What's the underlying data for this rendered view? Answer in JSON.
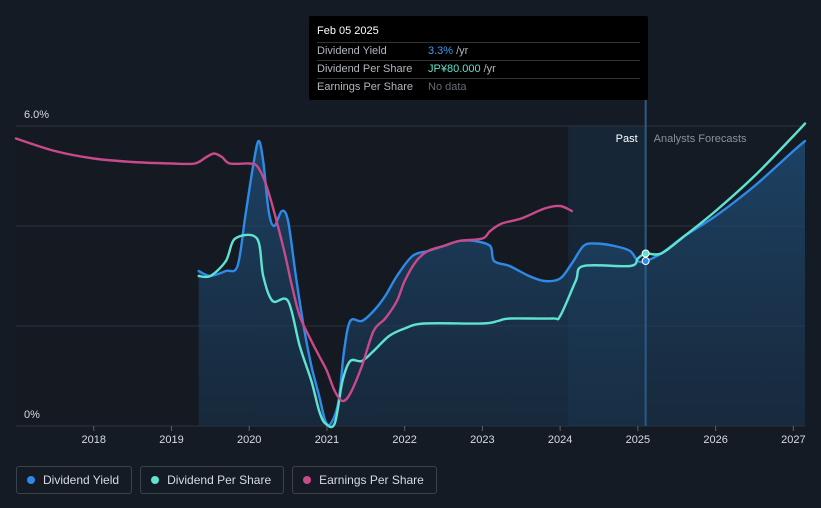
{
  "tooltip": {
    "date": "Feb 05 2025",
    "rows": [
      {
        "key": "Dividend Yield",
        "value": "3.3%",
        "unit": "/yr"
      },
      {
        "key": "Dividend Per Share",
        "value": "JP¥80.000",
        "unit": "/yr"
      },
      {
        "key": "Earnings Per Share",
        "value": "No data",
        "unit": ""
      }
    ]
  },
  "labels": {
    "past": "Past",
    "forecast": "Analysts Forecasts"
  },
  "legend": [
    {
      "label": "Dividend Yield",
      "color": "#2e8ae6"
    },
    {
      "label": "Dividend Per Share",
      "color": "#5fe3d0"
    },
    {
      "label": "Earnings Per Share",
      "color": "#c84a8a"
    }
  ],
  "chart_data": {
    "type": "line",
    "x_range": [
      2017.0,
      2027.15
    ],
    "y_range": [
      0,
      6.0
    ],
    "y_tick_labels": [
      {
        "value": 6.0,
        "label": "6.0%"
      },
      {
        "value": 0,
        "label": "0%"
      }
    ],
    "x_ticks": [
      2018,
      2019,
      2020,
      2021,
      2022,
      2023,
      2024,
      2025,
      2026,
      2027
    ],
    "grid": true,
    "past_region": [
      2024.1,
      2025.1
    ],
    "hover_x": 2025.1,
    "series": [
      {
        "name": "Dividend Yield",
        "color": "#2e8ae6",
        "fill": true,
        "points": [
          [
            2019.35,
            3.1
          ],
          [
            2019.5,
            3.0
          ],
          [
            2019.7,
            3.1
          ],
          [
            2019.85,
            3.2
          ],
          [
            2019.95,
            4.2
          ],
          [
            2020.05,
            5.2
          ],
          [
            2020.12,
            5.7
          ],
          [
            2020.18,
            5.3
          ],
          [
            2020.25,
            4.3
          ],
          [
            2020.32,
            4.0
          ],
          [
            2020.42,
            4.3
          ],
          [
            2020.5,
            4.1
          ],
          [
            2020.6,
            3.0
          ],
          [
            2020.7,
            2.0
          ],
          [
            2020.8,
            1.2
          ],
          [
            2020.9,
            0.6
          ],
          [
            2020.98,
            0.1
          ],
          [
            2021.05,
            0.05
          ],
          [
            2021.15,
            0.5
          ],
          [
            2021.22,
            1.5
          ],
          [
            2021.3,
            2.1
          ],
          [
            2021.45,
            2.1
          ],
          [
            2021.6,
            2.3
          ],
          [
            2021.75,
            2.6
          ],
          [
            2021.9,
            3.0
          ],
          [
            2022.1,
            3.4
          ],
          [
            2022.3,
            3.5
          ],
          [
            2022.5,
            3.6
          ],
          [
            2022.7,
            3.7
          ],
          [
            2022.9,
            3.7
          ],
          [
            2023.1,
            3.6
          ],
          [
            2023.15,
            3.3
          ],
          [
            2023.35,
            3.2
          ],
          [
            2023.6,
            3.0
          ],
          [
            2023.8,
            2.9
          ],
          [
            2024.0,
            2.95
          ],
          [
            2024.15,
            3.25
          ],
          [
            2024.3,
            3.6
          ],
          [
            2024.45,
            3.65
          ],
          [
            2024.7,
            3.6
          ],
          [
            2024.9,
            3.5
          ],
          [
            2025.0,
            3.3
          ],
          [
            2025.1,
            3.3
          ],
          [
            2025.3,
            3.45
          ],
          [
            2025.6,
            3.8
          ],
          [
            2026.0,
            4.2
          ],
          [
            2026.5,
            4.8
          ],
          [
            2027.0,
            5.5
          ],
          [
            2027.15,
            5.7
          ]
        ]
      },
      {
        "name": "Dividend Per Share",
        "color": "#5fe3d0",
        "fill": false,
        "points": [
          [
            2019.35,
            3.0
          ],
          [
            2019.5,
            3.0
          ],
          [
            2019.7,
            3.3
          ],
          [
            2019.82,
            3.75
          ],
          [
            2020.1,
            3.75
          ],
          [
            2020.18,
            3.0
          ],
          [
            2020.3,
            2.5
          ],
          [
            2020.5,
            2.5
          ],
          [
            2020.65,
            1.6
          ],
          [
            2020.8,
            0.9
          ],
          [
            2020.9,
            0.3
          ],
          [
            2020.98,
            0.05
          ],
          [
            2021.1,
            0.05
          ],
          [
            2021.2,
            0.9
          ],
          [
            2021.3,
            1.3
          ],
          [
            2021.45,
            1.3
          ],
          [
            2021.6,
            1.5
          ],
          [
            2021.8,
            1.8
          ],
          [
            2022.0,
            1.95
          ],
          [
            2022.25,
            2.05
          ],
          [
            2023.0,
            2.05
          ],
          [
            2023.2,
            2.1
          ],
          [
            2023.35,
            2.15
          ],
          [
            2023.9,
            2.15
          ],
          [
            2024.0,
            2.2
          ],
          [
            2024.2,
            2.9
          ],
          [
            2024.3,
            3.2
          ],
          [
            2024.9,
            3.2
          ],
          [
            2025.0,
            3.35
          ],
          [
            2025.1,
            3.45
          ],
          [
            2025.3,
            3.45
          ],
          [
            2025.6,
            3.8
          ],
          [
            2026.0,
            4.3
          ],
          [
            2026.5,
            5.0
          ],
          [
            2027.0,
            5.8
          ],
          [
            2027.15,
            6.05
          ]
        ]
      },
      {
        "name": "Earnings Per Share",
        "color": "#c84a8a",
        "fill": false,
        "points": [
          [
            2017.0,
            5.75
          ],
          [
            2017.5,
            5.5
          ],
          [
            2018.0,
            5.35
          ],
          [
            2018.5,
            5.28
          ],
          [
            2019.0,
            5.25
          ],
          [
            2019.3,
            5.25
          ],
          [
            2019.45,
            5.38
          ],
          [
            2019.55,
            5.45
          ],
          [
            2019.65,
            5.38
          ],
          [
            2019.75,
            5.25
          ],
          [
            2020.0,
            5.25
          ],
          [
            2020.1,
            5.2
          ],
          [
            2020.2,
            4.9
          ],
          [
            2020.3,
            4.4
          ],
          [
            2020.45,
            3.5
          ],
          [
            2020.55,
            2.8
          ],
          [
            2020.65,
            2.2
          ],
          [
            2020.8,
            1.7
          ],
          [
            2020.9,
            1.4
          ],
          [
            2021.0,
            1.1
          ],
          [
            2021.1,
            0.7
          ],
          [
            2021.2,
            0.5
          ],
          [
            2021.3,
            0.65
          ],
          [
            2021.45,
            1.2
          ],
          [
            2021.6,
            1.9
          ],
          [
            2021.75,
            2.15
          ],
          [
            2021.9,
            2.5
          ],
          [
            2022.0,
            2.9
          ],
          [
            2022.15,
            3.3
          ],
          [
            2022.3,
            3.5
          ],
          [
            2022.5,
            3.6
          ],
          [
            2022.7,
            3.7
          ],
          [
            2023.0,
            3.75
          ],
          [
            2023.1,
            3.9
          ],
          [
            2023.25,
            4.05
          ],
          [
            2023.5,
            4.15
          ],
          [
            2023.8,
            4.35
          ],
          [
            2024.0,
            4.4
          ],
          [
            2024.15,
            4.3
          ]
        ]
      }
    ],
    "markers": [
      {
        "series": "Dividend Per Share",
        "x": 2025.1,
        "y": 3.45
      },
      {
        "series": "Dividend Yield",
        "x": 2025.1,
        "y": 3.3
      }
    ]
  }
}
